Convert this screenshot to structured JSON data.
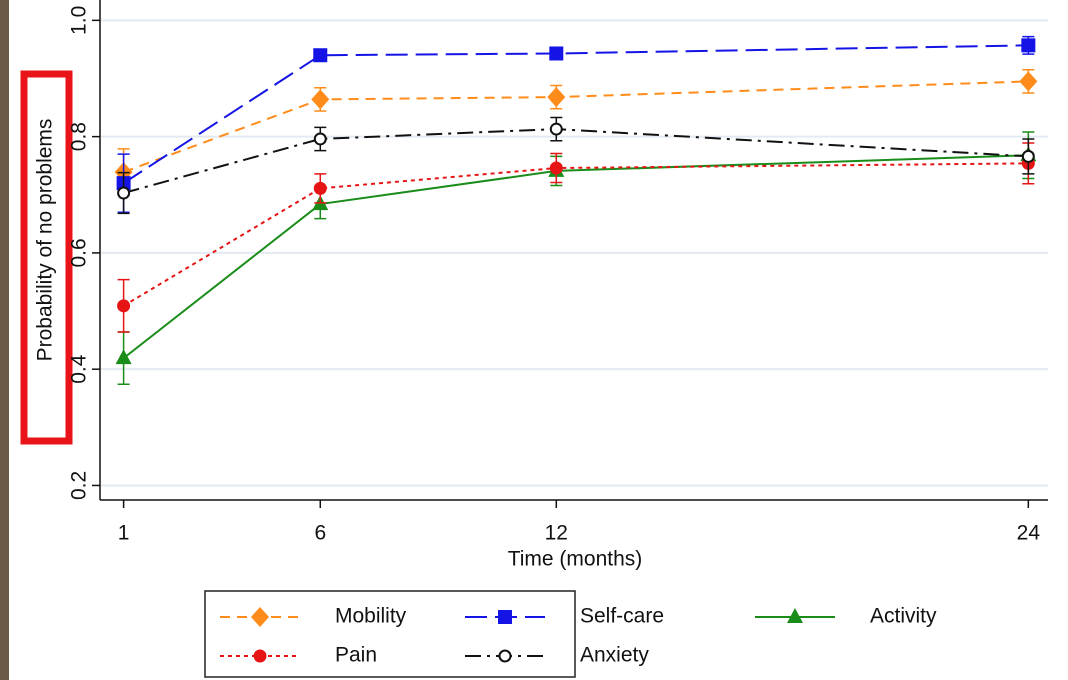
{
  "chart_data": {
    "type": "line",
    "y_label": "Probability of no problems",
    "x_label": "Time (months)",
    "x": [
      1,
      6,
      12,
      24
    ],
    "xlim": [
      0.4,
      24.5
    ],
    "xticks": [
      1,
      6,
      12,
      24
    ],
    "ylim": [
      0.175,
      1.035
    ],
    "yticks": [
      0.2,
      0.4,
      0.6,
      0.8,
      {
        "value": 1,
        "label": "1.0"
      }
    ],
    "grid": true,
    "series": [
      {
        "name": "Mobility",
        "color": "#ff8c1a",
        "marker": "diamond",
        "dash": "dashed",
        "values": [
          0.739,
          0.864,
          0.868,
          0.895
        ],
        "errors": [
          0.04,
          0.02,
          0.02,
          0.02
        ]
      },
      {
        "name": "Self-care",
        "color": "#1414e6",
        "marker": "square",
        "dash": "longdash",
        "values": [
          0.72,
          0.94,
          0.943,
          0.957
        ],
        "errors": [
          0.05,
          0.01,
          0.01,
          0.015
        ]
      },
      {
        "name": "Activity",
        "color": "#1a8c1a",
        "marker": "triangle",
        "dash": "solid",
        "values": [
          0.419,
          0.684,
          0.741,
          0.768
        ],
        "errors": [
          0.045,
          0.025,
          0.025,
          0.04
        ]
      },
      {
        "name": "Pain",
        "color": "#e61414",
        "marker": "circle",
        "dash": "dotted",
        "values": [
          0.509,
          0.711,
          0.746,
          0.754
        ],
        "errors": [
          0.045,
          0.025,
          0.025,
          0.035
        ]
      },
      {
        "name": "Anxiety",
        "color": "#111111",
        "marker": "hollow-circle",
        "dash": "dashdot",
        "values": [
          0.703,
          0.796,
          0.813,
          0.766
        ],
        "errors": [
          0.035,
          0.02,
          0.02,
          0.03
        ]
      }
    ]
  }
}
